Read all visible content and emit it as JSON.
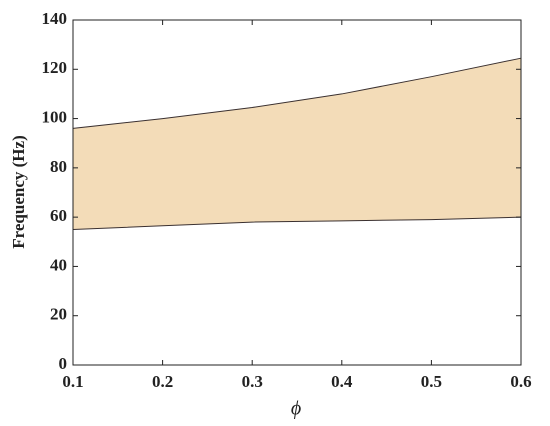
{
  "chart_data": {
    "type": "band",
    "x_label": "ϕ",
    "y_label": "Frequency (Hz)",
    "x": [
      0.1,
      0.2,
      0.3,
      0.4,
      0.5,
      0.6
    ],
    "lower": [
      55,
      56.5,
      58,
      58.5,
      59,
      60
    ],
    "upper": [
      96,
      100,
      104.5,
      110,
      117,
      124.5
    ],
    "fill_color": "#f3dcb8",
    "edge_color": "#3a3030",
    "xlim": [
      0.1,
      0.6
    ],
    "xticks": [
      0.1,
      0.2,
      0.3,
      0.4,
      0.5,
      0.6
    ],
    "ylim": [
      0,
      140
    ],
    "yticks": [
      0,
      20,
      40,
      60,
      80,
      100,
      120,
      140
    ]
  }
}
